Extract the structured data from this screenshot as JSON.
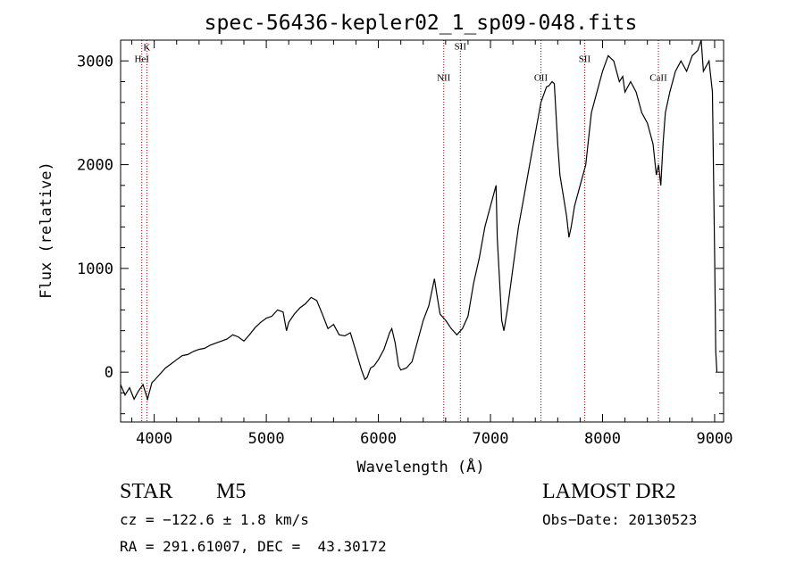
{
  "chart_data": {
    "type": "line",
    "title": "spec-56436-kepler02_1_sp09-048.fits",
    "xlabel": "Wavelength (Å)",
    "ylabel": "Flux (relative)",
    "xlim": [
      3700,
      9080
    ],
    "ylim": [
      -480,
      3200
    ],
    "xticks": [
      4000,
      5000,
      6000,
      7000,
      8000,
      9000
    ],
    "yticks": [
      0,
      1000,
      2000,
      3000
    ],
    "grid": false,
    "line_color": "#000000",
    "line_marker_color": "#a00000",
    "line_markers": [
      {
        "label": "K",
        "x": 3934,
        "label_y": 3100
      },
      {
        "label": "HeI",
        "x": 3889,
        "label_y": 2990
      },
      {
        "label": "NII",
        "x": 6583,
        "label_y": 2810
      },
      {
        "label": "SII",
        "x": 6731,
        "label_y": 3110
      },
      {
        "label": "OII",
        "x": 7450,
        "label_y": 2810
      },
      {
        "label": "SII",
        "x": 7840,
        "label_y": 2990
      },
      {
        "label": "CaII",
        "x": 8498,
        "label_y": 2810
      }
    ],
    "series": [
      {
        "x": [
          3700,
          3740,
          3780,
          3820,
          3860,
          3900,
          3940,
          3980,
          4000,
          4050,
          4100,
          4150,
          4200,
          4250,
          4300,
          4350,
          4400,
          4450,
          4500,
          4550,
          4600,
          4650,
          4700,
          4750,
          4800,
          4850,
          4900,
          4950,
          5000,
          5050,
          5100,
          5150,
          5180,
          5200,
          5250,
          5300,
          5350,
          5400,
          5450,
          5500,
          5550,
          5600,
          5650,
          5700,
          5750,
          5800,
          5850,
          5880,
          5900,
          5930,
          5960,
          6000,
          6050,
          6100,
          6120,
          6150,
          6180,
          6200,
          6250,
          6300,
          6350,
          6400,
          6450,
          6500,
          6520,
          6550,
          6600,
          6650,
          6700,
          6750,
          6800,
          6850,
          6900,
          6950,
          7000,
          7050,
          7060,
          7080,
          7100,
          7120,
          7150,
          7200,
          7250,
          7300,
          7350,
          7400,
          7450,
          7500,
          7520,
          7550,
          7570,
          7600,
          7620,
          7650,
          7680,
          7700,
          7720,
          7750,
          7800,
          7850,
          7900,
          7950,
          8000,
          8050,
          8100,
          8150,
          8180,
          8200,
          8250,
          8300,
          8350,
          8400,
          8450,
          8480,
          8500,
          8520,
          8540,
          8560,
          8600,
          8650,
          8700,
          8750,
          8800,
          8850,
          8880,
          8900,
          8950,
          8980,
          9000,
          9010,
          9020
        ],
        "y": [
          -120,
          -220,
          -150,
          -260,
          -180,
          -120,
          -260,
          -100,
          -80,
          -20,
          40,
          80,
          120,
          160,
          170,
          200,
          220,
          230,
          260,
          280,
          300,
          320,
          360,
          340,
          300,
          360,
          430,
          480,
          520,
          540,
          600,
          580,
          400,
          480,
          560,
          620,
          660,
          720,
          690,
          560,
          420,
          460,
          360,
          350,
          380,
          200,
          20,
          -70,
          -50,
          40,
          60,
          120,
          220,
          380,
          420,
          280,
          60,
          20,
          40,
          100,
          300,
          500,
          640,
          900,
          760,
          560,
          500,
          420,
          360,
          420,
          540,
          860,
          1100,
          1400,
          1600,
          1800,
          1300,
          900,
          500,
          400,
          600,
          1000,
          1400,
          1700,
          2000,
          2300,
          2600,
          2750,
          2760,
          2800,
          2780,
          2200,
          1900,
          1700,
          1500,
          1300,
          1400,
          1600,
          1800,
          2000,
          2500,
          2700,
          2900,
          3050,
          3000,
          2800,
          2850,
          2700,
          2800,
          2700,
          2500,
          2400,
          2200,
          1900,
          2000,
          1800,
          2200,
          2500,
          2700,
          2900,
          3000,
          2900,
          3050,
          3100,
          3200,
          2900,
          3000,
          2700,
          1100,
          200,
          0
        ]
      }
    ]
  },
  "info": {
    "object_class": "STAR",
    "subclass": "M5",
    "survey": "LAMOST DR2",
    "cz": "cz = −122.6 ± 1.8 km/s",
    "obs_date": "Obs−Date: 20130523",
    "coords": "RA = 291.61007, DEC =  43.30172"
  }
}
